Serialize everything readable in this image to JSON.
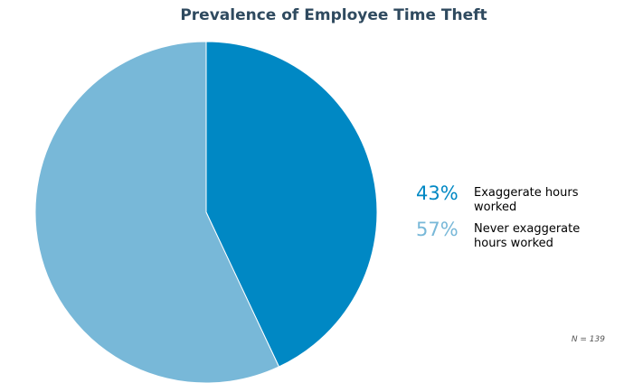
{
  "chart_data": {
    "type": "pie",
    "title": "Prevalence of Employee Time Theft",
    "slices": [
      {
        "label": "Exaggerate hours worked",
        "value": 43,
        "display": "43%",
        "color": "#0088c4"
      },
      {
        "label": "Never exaggerate hours worked",
        "value": 57,
        "display": "57%",
        "color": "#78b8d8"
      }
    ],
    "legend_position": "right",
    "note": "N = 139"
  }
}
